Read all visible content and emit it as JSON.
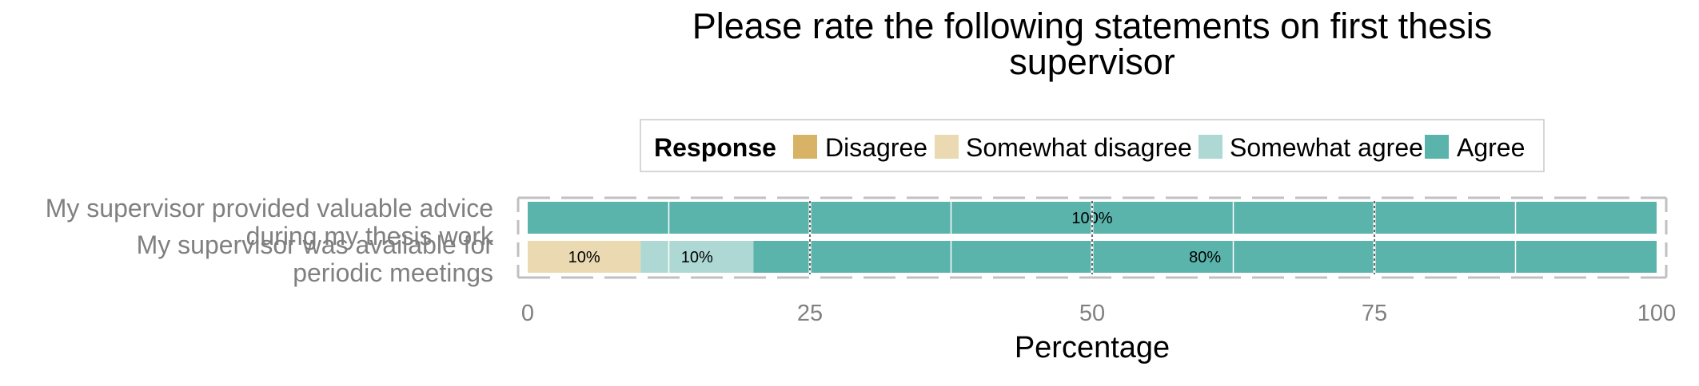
{
  "chart_data": {
    "type": "bar",
    "orientation": "horizontal",
    "stacked": true,
    "title_lines": [
      "Please rate the following statements on first thesis",
      "supervisor"
    ],
    "xlabel": "Percentage",
    "ylabel": "",
    "xlim": [
      0,
      100
    ],
    "xticks": [
      "0",
      "25",
      "50",
      "75",
      "100"
    ],
    "grid": true,
    "legend": {
      "title": "Response",
      "position": "top",
      "entries": [
        "Disagree",
        "Somewhat disagree",
        "Somewhat agree",
        "Agree"
      ]
    },
    "categories": [
      {
        "lines": [
          "My supervisor provided valuable advice",
          "during my thesis work"
        ]
      },
      {
        "lines": [
          "My supervisor was available for",
          "periodic meetings"
        ]
      }
    ],
    "series": [
      {
        "name": "Disagree",
        "color": "#d8b365",
        "values": [
          0,
          0
        ],
        "labels": [
          "",
          ""
        ]
      },
      {
        "name": "Somewhat disagree",
        "color": "#ebd9b2",
        "values": [
          0,
          10
        ],
        "labels": [
          "",
          "10%"
        ]
      },
      {
        "name": "Somewhat agree",
        "color": "#add8d4",
        "values": [
          0,
          10
        ],
        "labels": [
          "",
          "10%"
        ]
      },
      {
        "name": "Agree",
        "color": "#5ab4ac",
        "values": [
          100,
          80
        ],
        "labels": [
          "100%",
          "80%"
        ]
      }
    ]
  }
}
